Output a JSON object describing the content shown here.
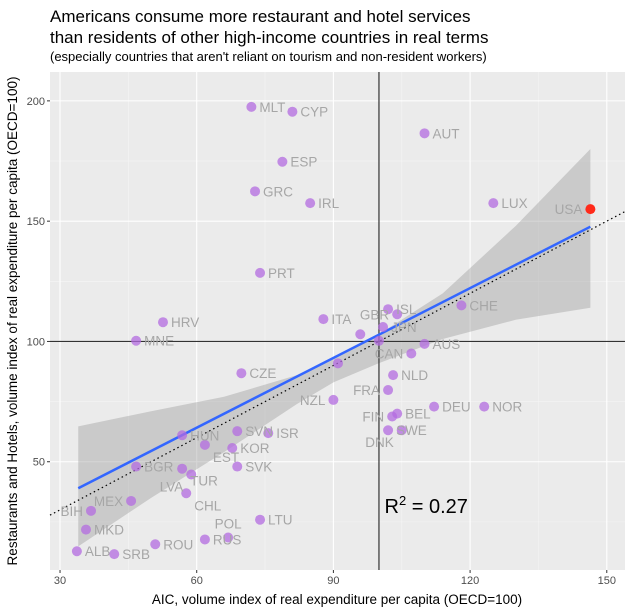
{
  "chart_data": {
    "type": "scatter",
    "title": "Americans consume more restaurant and hotel services\nthan residents of other high-income countries in real terms",
    "subtitle": "(especially countries that aren't reliant on tourism and non-resident workers)",
    "xlabel": "AIC, volume index of real expenditure per capita (OECD=100)",
    "ylabel": "Restaurants and Hotels, volume index of real expenditure per capita (OECD=100)",
    "xlim": [
      27.8,
      154
    ],
    "ylim": [
      5,
      212
    ],
    "xticks": [
      30,
      60,
      90,
      120,
      150
    ],
    "yticks": [
      50,
      100,
      150,
      200
    ],
    "grid": true,
    "reference_lines": {
      "vline": 100,
      "hline": 100,
      "identity_line": "dotted y=x"
    },
    "annotation": {
      "text_base": "R",
      "text_sup": "2",
      "text_rest": " = 0.27",
      "x": 101,
      "y": 30
    },
    "colors": {
      "points": "#b36be0",
      "highlight": "#ff2a1a",
      "fit": "#3366ff",
      "ribbon": "#cccccc",
      "panel": "#ebebeb"
    },
    "fit": {
      "x": [
        34,
        146.4
      ],
      "y": [
        39,
        147.7
      ]
    },
    "ribbon": {
      "x": [
        34,
        50,
        66,
        82,
        90,
        100,
        114,
        130,
        146.4
      ],
      "lower": [
        14.8,
        35,
        54,
        74,
        83,
        91,
        101,
        109,
        114
      ],
      "upper": [
        64.7,
        71,
        77,
        86,
        93,
        103,
        120,
        148,
        180
      ]
    },
    "points": [
      {
        "label": "MLT",
        "x": 72,
        "y": 197.5
      },
      {
        "label": "CYP",
        "x": 81,
        "y": 195.5
      },
      {
        "label": "AUT",
        "x": 110,
        "y": 186.5
      },
      {
        "label": "ESP",
        "x": 78.8,
        "y": 174.7
      },
      {
        "label": "GRC",
        "x": 72.8,
        "y": 162.4
      },
      {
        "label": "IRL",
        "x": 84.9,
        "y": 157.5
      },
      {
        "label": "LUX",
        "x": 125.1,
        "y": 157.5
      },
      {
        "label": "USA",
        "x": 146.4,
        "y": 155,
        "highlight": true
      },
      {
        "label": "PRT",
        "x": 73.9,
        "y": 128.5
      },
      {
        "label": "ITA",
        "x": 87.8,
        "y": 109.3
      },
      {
        "label": "HRV",
        "x": 52.6,
        "y": 108
      },
      {
        "label": "MNE",
        "x": 46.7,
        "y": 100.3
      },
      {
        "label": "ISL",
        "x": 102,
        "y": 113.4
      },
      {
        "label": "GBR",
        "x": 104,
        "y": 111.3
      },
      {
        "label": "CHE",
        "x": 118.1,
        "y": 115
      },
      {
        "label": "JPN",
        "x": 100.9,
        "y": 106
      },
      {
        "label": "",
        "x": 95.9,
        "y": 103
      },
      {
        "label": "",
        "x": 100,
        "y": 100.3
      },
      {
        "label": "AUS",
        "x": 110,
        "y": 99
      },
      {
        "label": "CAN",
        "x": 107.1,
        "y": 95
      },
      {
        "label": "",
        "x": 91,
        "y": 90.9
      },
      {
        "label": "NLD",
        "x": 103.1,
        "y": 86
      },
      {
        "label": "CZE",
        "x": 69.8,
        "y": 86.8
      },
      {
        "label": "FRA",
        "x": 102,
        "y": 79.8
      },
      {
        "label": "NZL",
        "x": 90,
        "y": 75.7
      },
      {
        "label": "DEU",
        "x": 112.1,
        "y": 72.9
      },
      {
        "label": "NOR",
        "x": 123.1,
        "y": 72.9
      },
      {
        "label": "BEL",
        "x": 104,
        "y": 70
      },
      {
        "label": "FIN",
        "x": 102.9,
        "y": 68.8
      },
      {
        "label": "SWE",
        "x": 102,
        "y": 63.1
      },
      {
        "label": "DNK",
        "x": 105,
        "y": 63.1
      },
      {
        "label": "HUN",
        "x": 56.8,
        "y": 61
      },
      {
        "label": "SVN",
        "x": 68.9,
        "y": 62.7
      },
      {
        "label": "ISR",
        "x": 75.7,
        "y": 61.9
      },
      {
        "label": "EST",
        "x": 61.8,
        "y": 57
      },
      {
        "label": "KOR",
        "x": 67.8,
        "y": 55.7
      },
      {
        "label": "BGR",
        "x": 46.7,
        "y": 48
      },
      {
        "label": "TUR",
        "x": 56.8,
        "y": 47.1
      },
      {
        "label": "LVA",
        "x": 58.8,
        "y": 44.7
      },
      {
        "label": "SVK",
        "x": 68.9,
        "y": 48
      },
      {
        "label": "CHL",
        "x": 57.7,
        "y": 36.9
      },
      {
        "label": "MEX",
        "x": 45.6,
        "y": 33.7
      },
      {
        "label": "BIH",
        "x": 36.8,
        "y": 29.6
      },
      {
        "label": "MKD",
        "x": 35.7,
        "y": 21.8
      },
      {
        "label": "LTU",
        "x": 73.9,
        "y": 25.9
      },
      {
        "label": "ROU",
        "x": 50.9,
        "y": 15.7
      },
      {
        "label": "RUS",
        "x": 61.8,
        "y": 17.7
      },
      {
        "label": "POL",
        "x": 66.9,
        "y": 18.5
      },
      {
        "label": "ALB",
        "x": 33.7,
        "y": 12.8
      },
      {
        "label": "SRB",
        "x": 41.9,
        "y": 11.6
      }
    ]
  }
}
